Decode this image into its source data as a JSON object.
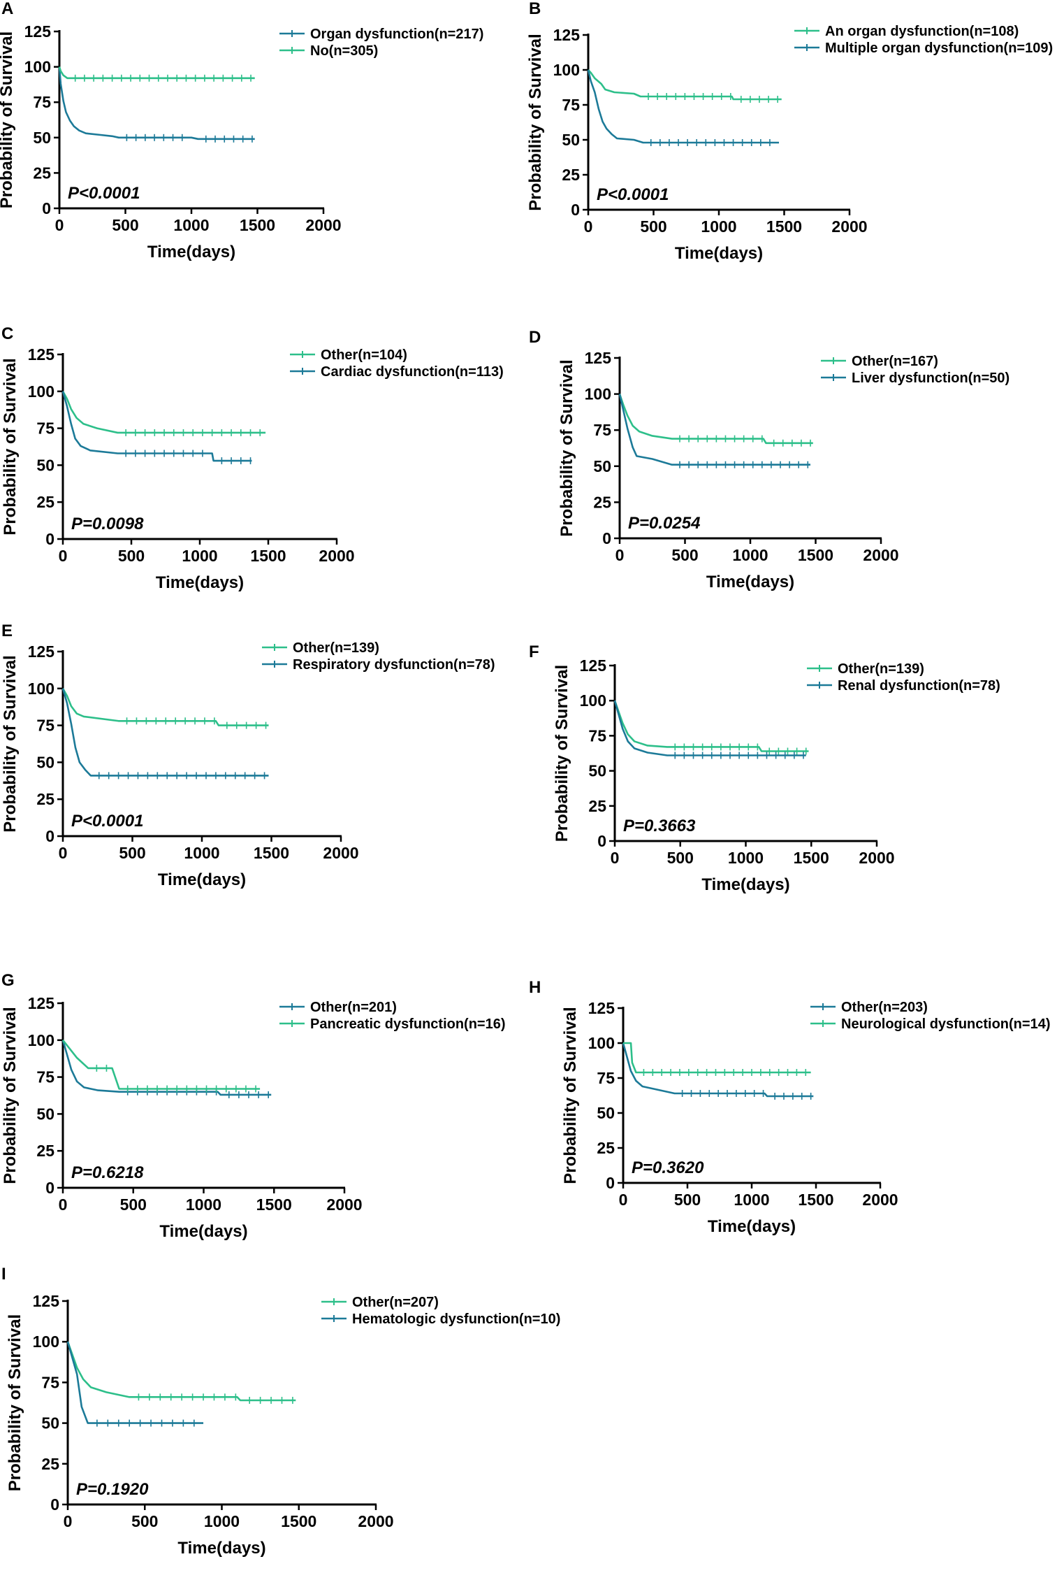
{
  "figure": {
    "colors": {
      "teal": "#1c7a98",
      "green": "#2dbf8a"
    },
    "xaxis": {
      "label": "Time(days)",
      "ticks": [
        0,
        500,
        1000,
        1500,
        2000
      ],
      "range": [
        0,
        2000
      ]
    },
    "yaxis": {
      "label": "Probability of Survival",
      "ticks": [
        0,
        25,
        50,
        75,
        100,
        125
      ],
      "range": [
        0,
        125
      ]
    }
  },
  "chart_data": [
    {
      "panel": "A",
      "type": "line",
      "pvalue": "P<0.0001",
      "title": "",
      "xlabel": "Time(days)",
      "ylabel": "Probability of Survival",
      "xlim": [
        0,
        2000
      ],
      "ylim": [
        0,
        125
      ],
      "series": [
        {
          "name": "Organ dysfunction(n=217)",
          "color": "teal",
          "points": [
            [
              0,
              100
            ],
            [
              10,
              88
            ],
            [
              30,
              76
            ],
            [
              50,
              68
            ],
            [
              80,
              62
            ],
            [
              110,
              58
            ],
            [
              150,
              55
            ],
            [
              200,
              53
            ],
            [
              300,
              52
            ],
            [
              400,
              51
            ],
            [
              450,
              50
            ],
            [
              1000,
              50
            ],
            [
              1050,
              49
            ],
            [
              1480,
              49
            ]
          ]
        },
        {
          "name": "No(n=305)",
          "color": "green",
          "points": [
            [
              0,
              100
            ],
            [
              10,
              97
            ],
            [
              30,
              94
            ],
            [
              60,
              92
            ],
            [
              1480,
              92
            ]
          ]
        }
      ]
    },
    {
      "panel": "B",
      "type": "line",
      "pvalue": "P<0.0001",
      "title": "",
      "xlabel": "Time(days)",
      "ylabel": "Probability of Survival",
      "xlim": [
        0,
        2000
      ],
      "ylim": [
        0,
        125
      ],
      "series": [
        {
          "name": "An organ dysfunction(n=108)",
          "color": "green",
          "points": [
            [
              0,
              100
            ],
            [
              20,
              98
            ],
            [
              50,
              94
            ],
            [
              100,
              90
            ],
            [
              130,
              86
            ],
            [
              200,
              84
            ],
            [
              350,
              83
            ],
            [
              400,
              81
            ],
            [
              1100,
              81
            ],
            [
              1110,
              79
            ],
            [
              1480,
              79
            ]
          ]
        },
        {
          "name": "Multiple organ dysfunction(n=109)",
          "color": "teal",
          "points": [
            [
              0,
              100
            ],
            [
              20,
              92
            ],
            [
              50,
              84
            ],
            [
              80,
              72
            ],
            [
              110,
              63
            ],
            [
              140,
              58
            ],
            [
              180,
              54
            ],
            [
              220,
              51
            ],
            [
              350,
              50
            ],
            [
              420,
              48
            ],
            [
              1460,
              48
            ]
          ]
        }
      ]
    },
    {
      "panel": "C",
      "type": "line",
      "pvalue": "P=0.0098",
      "title": "",
      "xlabel": "Time(days)",
      "ylabel": "Probability of Survival",
      "xlim": [
        0,
        2000
      ],
      "ylim": [
        0,
        125
      ],
      "series": [
        {
          "name": "Other(n=104)",
          "color": "green",
          "points": [
            [
              0,
              100
            ],
            [
              30,
              95
            ],
            [
              60,
              88
            ],
            [
              100,
              82
            ],
            [
              150,
              78
            ],
            [
              250,
              75
            ],
            [
              400,
              72
            ],
            [
              1480,
              72
            ]
          ]
        },
        {
          "name": "Cardiac dysfunction(n=113)",
          "color": "teal",
          "points": [
            [
              0,
              100
            ],
            [
              30,
              90
            ],
            [
              60,
              78
            ],
            [
              90,
              68
            ],
            [
              130,
              63
            ],
            [
              200,
              60
            ],
            [
              400,
              58
            ],
            [
              1090,
              58
            ],
            [
              1100,
              53
            ],
            [
              1380,
              53
            ]
          ]
        }
      ]
    },
    {
      "panel": "D",
      "type": "line",
      "pvalue": "P=0.0254",
      "title": "",
      "xlabel": "Time(days)",
      "ylabel": "Probability of Survival",
      "xlim": [
        0,
        2000
      ],
      "ylim": [
        0,
        125
      ],
      "series": [
        {
          "name": "Other(n=167)",
          "color": "green",
          "points": [
            [
              0,
              100
            ],
            [
              30,
              92
            ],
            [
              60,
              85
            ],
            [
              100,
              78
            ],
            [
              150,
              74
            ],
            [
              250,
              71
            ],
            [
              400,
              69
            ],
            [
              1100,
              69
            ],
            [
              1120,
              66
            ],
            [
              1480,
              66
            ]
          ]
        },
        {
          "name": "Liver dysfunction(n=50)",
          "color": "teal",
          "points": [
            [
              0,
              100
            ],
            [
              30,
              88
            ],
            [
              60,
              76
            ],
            [
              100,
              63
            ],
            [
              130,
              57
            ],
            [
              250,
              55
            ],
            [
              400,
              51
            ],
            [
              1460,
              51
            ]
          ]
        }
      ]
    },
    {
      "panel": "E",
      "type": "line",
      "pvalue": "P<0.0001",
      "title": "",
      "xlabel": "Time(days)",
      "ylabel": "Probability of Survival",
      "xlim": [
        0,
        2000
      ],
      "ylim": [
        0,
        125
      ],
      "series": [
        {
          "name": "Other(n=139)",
          "color": "green",
          "points": [
            [
              0,
              100
            ],
            [
              30,
              95
            ],
            [
              60,
              88
            ],
            [
              100,
              83
            ],
            [
              150,
              81
            ],
            [
              400,
              78
            ],
            [
              1100,
              78
            ],
            [
              1120,
              75
            ],
            [
              1480,
              75
            ]
          ]
        },
        {
          "name": "Respiratory dysfunction(n=78)",
          "color": "teal",
          "points": [
            [
              0,
              100
            ],
            [
              30,
              90
            ],
            [
              60,
              76
            ],
            [
              90,
              60
            ],
            [
              120,
              50
            ],
            [
              160,
              45
            ],
            [
              200,
              41
            ],
            [
              1480,
              41
            ]
          ]
        }
      ]
    },
    {
      "panel": "F",
      "type": "line",
      "pvalue": "P=0.3663",
      "title": "",
      "xlabel": "Time(days)",
      "ylabel": "Probability of Survival",
      "xlim": [
        0,
        2000
      ],
      "ylim": [
        0,
        125
      ],
      "series": [
        {
          "name": "Other(n=139)",
          "color": "green",
          "points": [
            [
              0,
              100
            ],
            [
              30,
              92
            ],
            [
              60,
              84
            ],
            [
              100,
              76
            ],
            [
              150,
              71
            ],
            [
              250,
              68
            ],
            [
              400,
              67
            ],
            [
              1100,
              67
            ],
            [
              1120,
              64
            ],
            [
              1480,
              64
            ]
          ]
        },
        {
          "name": "Renal dysfunction(n=78)",
          "color": "teal",
          "points": [
            [
              0,
              100
            ],
            [
              30,
              90
            ],
            [
              60,
              80
            ],
            [
              100,
              71
            ],
            [
              150,
              66
            ],
            [
              250,
              63
            ],
            [
              400,
              61
            ],
            [
              1460,
              61
            ]
          ]
        }
      ]
    },
    {
      "panel": "G",
      "type": "line",
      "pvalue": "P=0.6218",
      "title": "",
      "xlabel": "Time(days)",
      "ylabel": "Probability of Survival",
      "xlim": [
        0,
        2000
      ],
      "ylim": [
        0,
        125
      ],
      "series": [
        {
          "name": "Other(n=201)",
          "color": "teal",
          "points": [
            [
              0,
              100
            ],
            [
              30,
              90
            ],
            [
              60,
              80
            ],
            [
              100,
              72
            ],
            [
              150,
              68
            ],
            [
              250,
              66
            ],
            [
              400,
              65
            ],
            [
              1100,
              65
            ],
            [
              1120,
              63
            ],
            [
              1480,
              63
            ]
          ]
        },
        {
          "name": "Pancreatic dysfunction(n=16)",
          "color": "green",
          "points": [
            [
              0,
              100
            ],
            [
              50,
              94
            ],
            [
              100,
              88
            ],
            [
              180,
              81
            ],
            [
              350,
              81
            ],
            [
              400,
              67
            ],
            [
              1400,
              67
            ]
          ]
        }
      ]
    },
    {
      "panel": "H",
      "type": "line",
      "pvalue": "P=0.3620",
      "title": "",
      "xlabel": "Time(days)",
      "ylabel": "Probability of Survival",
      "xlim": [
        0,
        2000
      ],
      "ylim": [
        0,
        125
      ],
      "series": [
        {
          "name": "Other(n=203)",
          "color": "teal",
          "points": [
            [
              0,
              100
            ],
            [
              30,
              90
            ],
            [
              60,
              80
            ],
            [
              100,
              73
            ],
            [
              150,
              69
            ],
            [
              250,
              67
            ],
            [
              400,
              64
            ],
            [
              1100,
              64
            ],
            [
              1120,
              62
            ],
            [
              1480,
              62
            ]
          ]
        },
        {
          "name": "Neurological dysfunction(n=14)",
          "color": "green",
          "points": [
            [
              0,
              100
            ],
            [
              60,
              100
            ],
            [
              70,
              86
            ],
            [
              100,
              79
            ],
            [
              1460,
              79
            ]
          ]
        }
      ]
    },
    {
      "panel": "I",
      "type": "line",
      "pvalue": "P=0.1920",
      "title": "",
      "xlabel": "Time(days)",
      "ylabel": "Probability of Survival",
      "xlim": [
        0,
        2000
      ],
      "ylim": [
        0,
        125
      ],
      "series": [
        {
          "name": "Other(n=207)",
          "color": "green",
          "points": [
            [
              0,
              100
            ],
            [
              30,
              92
            ],
            [
              60,
              84
            ],
            [
              100,
              77
            ],
            [
              150,
              72
            ],
            [
              250,
              69
            ],
            [
              400,
              66
            ],
            [
              1100,
              66
            ],
            [
              1120,
              64
            ],
            [
              1480,
              64
            ]
          ]
        },
        {
          "name": "Hematologic dysfunction(n=10)",
          "color": "teal",
          "points": [
            [
              0,
              100
            ],
            [
              30,
              90
            ],
            [
              60,
              80
            ],
            [
              90,
              60
            ],
            [
              130,
              50
            ],
            [
              880,
              50
            ]
          ]
        }
      ]
    }
  ]
}
